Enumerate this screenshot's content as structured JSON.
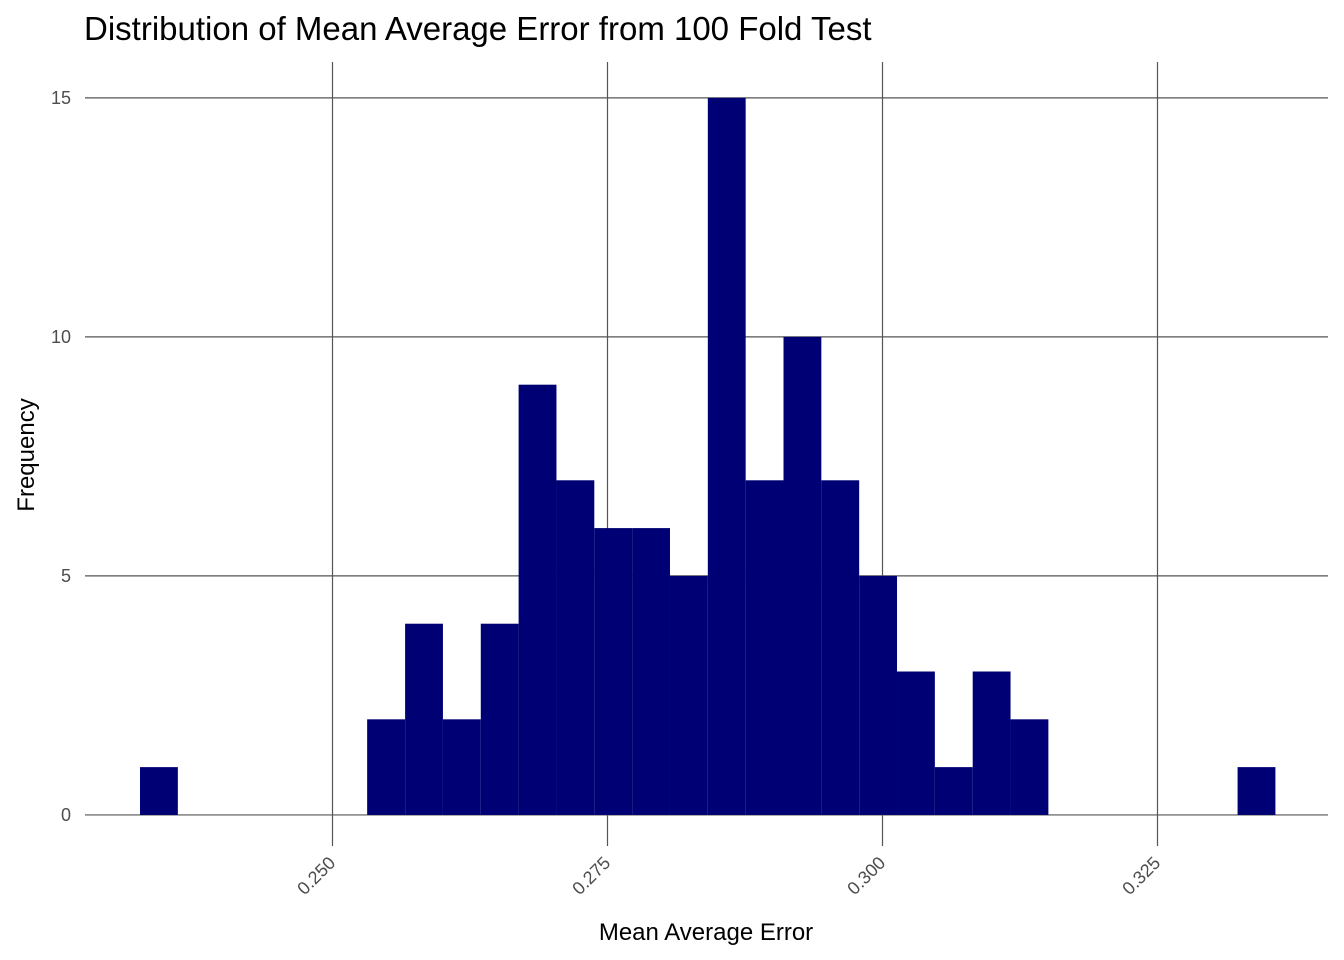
{
  "chart_data": {
    "type": "bar",
    "title": "Distribution of Mean Average Error from 100 Fold Test",
    "xlabel": "Mean Average Error",
    "ylabel": "Frequency",
    "xlim": [
      0.2275,
      0.3405
    ],
    "ylim": [
      -0.65,
      15.75
    ],
    "x_ticks": [
      0.25,
      0.275,
      0.3,
      0.325
    ],
    "x_tick_labels": [
      "0.250",
      "0.275",
      "0.300",
      "0.325"
    ],
    "y_ticks": [
      0,
      5,
      10,
      15
    ],
    "y_tick_labels": [
      "0",
      "5",
      "10",
      "15"
    ],
    "bin_width": 0.00344,
    "bins": [
      {
        "x0": 0.2325,
        "count": 1
      },
      {
        "x0": 0.25315,
        "count": 2
      },
      {
        "x0": 0.2566,
        "count": 4
      },
      {
        "x0": 0.26004,
        "count": 2
      },
      {
        "x0": 0.26348,
        "count": 4
      },
      {
        "x0": 0.26692,
        "count": 9
      },
      {
        "x0": 0.27036,
        "count": 7
      },
      {
        "x0": 0.2738,
        "count": 6
      },
      {
        "x0": 0.27724,
        "count": 6
      },
      {
        "x0": 0.28068,
        "count": 5
      },
      {
        "x0": 0.28412,
        "count": 15
      },
      {
        "x0": 0.28756,
        "count": 7
      },
      {
        "x0": 0.291,
        "count": 10
      },
      {
        "x0": 0.29444,
        "count": 7
      },
      {
        "x0": 0.29788,
        "count": 5
      },
      {
        "x0": 0.30132,
        "count": 3
      },
      {
        "x0": 0.30476,
        "count": 1
      },
      {
        "x0": 0.3082,
        "count": 3
      },
      {
        "x0": 0.31164,
        "count": 2
      },
      {
        "x0": 0.33228,
        "count": 1
      }
    ],
    "bar_color": "#000075",
    "grid": true,
    "legend": "none"
  }
}
